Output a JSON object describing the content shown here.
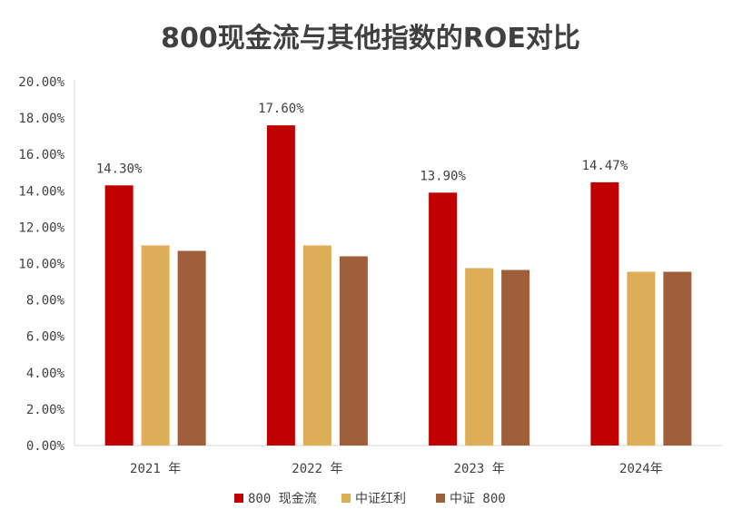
{
  "chart_data": {
    "type": "bar",
    "title": "800现金流与其他指数的ROE对比",
    "categories": [
      "2021 年",
      "2022 年",
      "2023 年",
      "2024年"
    ],
    "series": [
      {
        "name": "800 现金流",
        "color": "#C00000",
        "values": [
          14.3,
          17.6,
          13.9,
          14.47
        ]
      },
      {
        "name": "中证红利",
        "color": "#DDAE57",
        "values": [
          11.0,
          11.0,
          9.75,
          9.55
        ]
      },
      {
        "name": "中证 800",
        "color": "#9E5F3A",
        "values": [
          10.7,
          10.4,
          9.65,
          9.55
        ]
      }
    ],
    "data_labels": [
      "14.30%",
      "17.60%",
      "13.90%",
      "14.47%"
    ],
    "y_ticks": [
      "0.00%",
      "2.00%",
      "4.00%",
      "6.00%",
      "8.00%",
      "10.00%",
      "12.00%",
      "14.00%",
      "16.00%",
      "18.00%",
      "20.00%"
    ],
    "ylim": [
      0,
      20
    ],
    "grid": false,
    "legend_position": "bottom"
  }
}
